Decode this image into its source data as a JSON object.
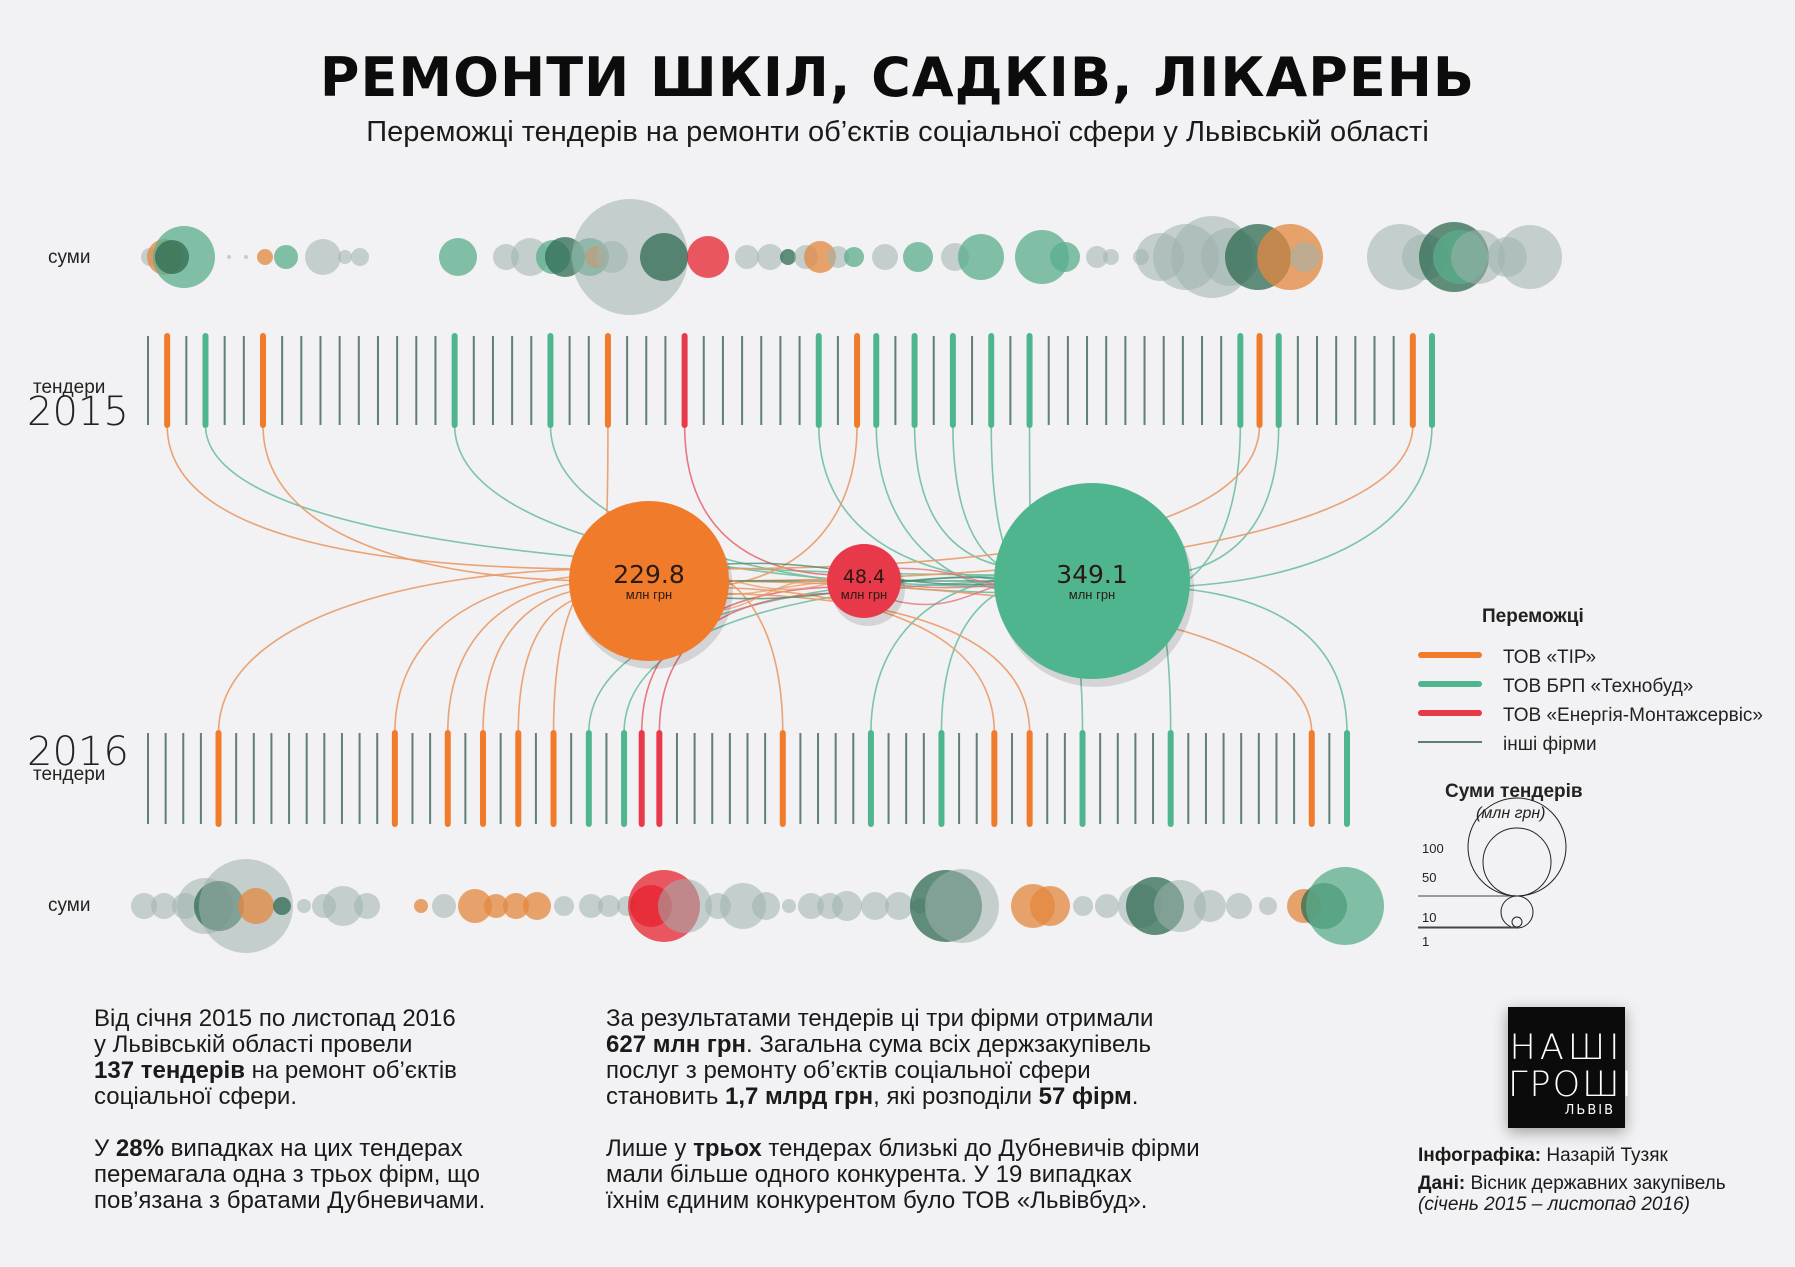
{
  "header": {
    "title": "РЕМОНТИ ШКІЛ, САДКІВ, ЛІКАРЕНЬ",
    "subtitle": "Переможці тендерів на ремонти об’єктів соціальної сфери у Львівській області"
  },
  "labels": {
    "sums_top": "суми",
    "tenders_2015_word": "тендери",
    "year_2015": "2015",
    "year_2016": "2016",
    "tenders_2016_word": "тендери",
    "sums_bottom": "суми"
  },
  "colors": {
    "tir": "#f07b2b",
    "tekhnobud": "#4fb58f",
    "energia": "#e8394a",
    "other": "#7a9a92",
    "background": "#f2f1f3"
  },
  "hubs": [
    {
      "key": "tir",
      "value": "229.8",
      "unit": "млн грн"
    },
    {
      "key": "energia",
      "value": "48.4",
      "unit": "млн грн"
    },
    {
      "key": "tekhnobud",
      "value": "349.1",
      "unit": "млн грн"
    }
  ],
  "legend": {
    "title": "Переможці",
    "items": [
      {
        "key": "tir",
        "label": "ТОВ «ТІР»"
      },
      {
        "key": "tekhnobud",
        "label": "ТОВ БРП «Технобуд»"
      },
      {
        "key": "energia",
        "label": "ТОВ «Енергія-Монтажсервіс»"
      },
      {
        "key": "other",
        "label": "інші фірми"
      }
    ],
    "sizes_title": "Суми тендерів",
    "sizes_unit": "(млн грн)",
    "size_scale": [
      100,
      50,
      10,
      1
    ]
  },
  "tenders_2015": {
    "count": 68,
    "tir": [
      1,
      6,
      24,
      37,
      58,
      66
    ],
    "tekhnobud": [
      3,
      16,
      21,
      35,
      38,
      40,
      42,
      44,
      46,
      57,
      59,
      67
    ],
    "energia": [
      28
    ]
  },
  "tenders_2016": {
    "count": 69,
    "tir": [
      4,
      14,
      17,
      19,
      21,
      23,
      36,
      48,
      50,
      66
    ],
    "tekhnobud": [
      25,
      27,
      41,
      45,
      53,
      58,
      68
    ],
    "energia": [
      28,
      29
    ]
  },
  "text": {
    "col1_p1_a": "Від січня 2015 по листопад 2016",
    "col1_p1_b": "у Львівській області провели",
    "col1_p1_c_bold": "137 тендерів",
    "col1_p1_c": " на ремонт об’єктів",
    "col1_p1_d": "соціальної сфери.",
    "col1_p2_a": "У ",
    "col1_p2_a_bold": "28%",
    "col1_p2_a2": " випадках на цих тендерах",
    "col1_p2_b": "перемагала одна з трьох фірм, що",
    "col1_p2_c": "пов’язана з братами Дубневичами.",
    "col2_p1_a": "За результатами тендерів ці три фірми отримали",
    "col2_p1_b_bold": "627 млн грн",
    "col2_p1_b": ". Загальна сума всіх держзакупівель",
    "col2_p1_c": "послуг з ремонту об’єктів соціальної сфери",
    "col2_p1_d": "становить ",
    "col2_p1_d_bold": "1,7 млрд грн",
    "col2_p1_d2": ", які розподіли ",
    "col2_p1_d_bold2": "57 фірм",
    "col2_p1_d3": ".",
    "col2_p2_a": "Лише у ",
    "col2_p2_a_bold": "трьох",
    "col2_p2_a2": " тендерах близькі до Дубневичів фірми",
    "col2_p2_b": "мали більше одного конкурента. У 19 випадках",
    "col2_p2_c": "їхнім єдиним конкурентом було ТОВ «Львівбуд»."
  },
  "logo": {
    "line1": "НАШІ",
    "line2": "ГРОШІ",
    "line3": "ЛЬВІВ"
  },
  "credits": {
    "author_label": "Інфографіка:",
    "author": " Назарій Тузяк",
    "data_label": "Дані:",
    "data_source": " Вісник державних закупівель",
    "period": "(січень 2015 – листопад 2016)"
  }
}
